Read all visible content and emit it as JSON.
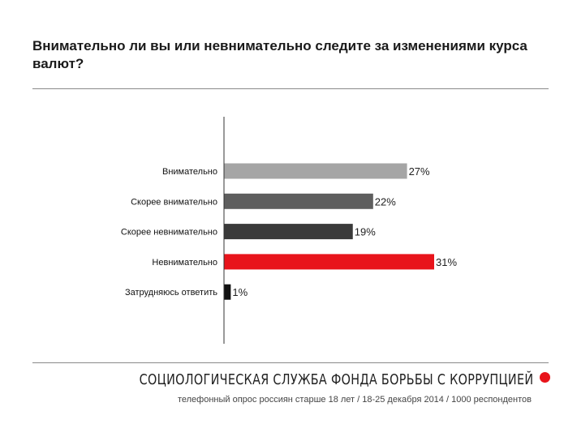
{
  "colors": {
    "attentive": "#a5a5a5",
    "rather_attentive": "#5e5e5e",
    "rather_inattentive": "#3a3a3a",
    "inattentive": "#e8141b",
    "hard_to_say": "#111111",
    "accent": "#e8141b"
  },
  "chart_data": {
    "type": "bar",
    "orientation": "horizontal",
    "title": "Внимательно ли вы или невнимательно следите за изменениями курса валют?",
    "categories": [
      "Внимательно",
      "Скорее внимательно",
      "Скорее невнимательно",
      "Невнимательно",
      "Затрудняюсь ответить"
    ],
    "values": [
      27,
      22,
      19,
      31,
      1
    ],
    "value_labels": [
      "27%",
      "22%",
      "19%",
      "31%",
      "1%"
    ],
    "unit": "%",
    "xlim": [
      0,
      31
    ],
    "grid": false,
    "legend": "none",
    "bar_colors": [
      "#a5a5a5",
      "#5e5e5e",
      "#3a3a3a",
      "#e8141b",
      "#111111"
    ]
  },
  "footer": {
    "organization": "СОЦИОЛОГИЧЕСКАЯ СЛУЖБА ФОНДА БОРЬБЫ С КОРРУПЦИЕЙ",
    "meta": "телефонный опрос россиян старше 18 лет / 18-25 декабря 2014 / 1000 респондентов"
  }
}
